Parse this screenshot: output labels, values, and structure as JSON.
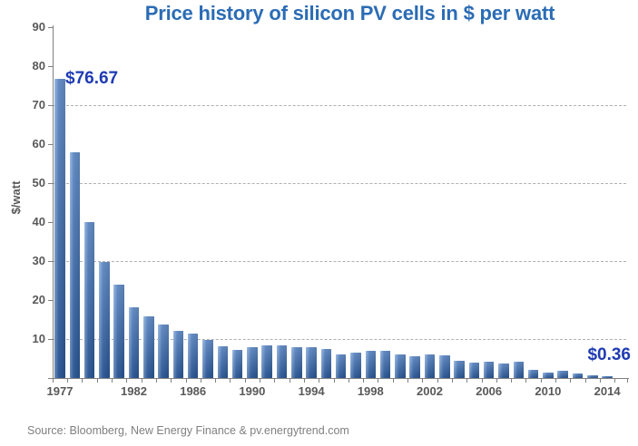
{
  "title": "Price history of silicon PV cells in $ per watt",
  "source_note": "Source: Bloomberg, New Energy Finance & pv.energytrend.com",
  "annotations": {
    "first_price": "$76.67",
    "last_price": "$0.36"
  },
  "y_axis": {
    "title": "$/watt",
    "tick_labels": [
      "90",
      "80",
      "70",
      "60",
      "50",
      "40",
      "30",
      "20",
      "10"
    ],
    "tick_values": [
      90,
      80,
      70,
      60,
      50,
      40,
      30,
      20,
      10
    ],
    "gridlines": [
      70,
      50,
      30,
      10
    ],
    "max": 90
  },
  "x_axis": {
    "labels": [
      "1977",
      "1982",
      "1986",
      "1990",
      "1994",
      "1998",
      "2002",
      "2006",
      "2010",
      "2014"
    ]
  },
  "chart_data": {
    "type": "bar",
    "title": "Price history of silicon PV cells in $ per watt",
    "xlabel": "",
    "ylabel": "$/watt",
    "ylim": [
      0,
      90
    ],
    "grid": "dashed horizontal at 10, 30, 50, 70",
    "legend": "none",
    "categories": [
      "1977",
      "1978",
      "1979",
      "1980",
      "1981",
      "1982",
      "1983",
      "1984",
      "1985",
      "1986",
      "1987",
      "1988",
      "1989",
      "1990",
      "1991",
      "1992",
      "1993",
      "1994",
      "1995",
      "1996",
      "1997",
      "1998",
      "1999",
      "2000",
      "2001",
      "2002",
      "2003",
      "2004",
      "2005",
      "2006",
      "2007",
      "2008",
      "2009",
      "2010",
      "2011",
      "2012",
      "2013",
      "2014"
    ],
    "values": [
      76.67,
      58,
      40,
      29.7,
      24,
      18.2,
      15.8,
      13.8,
      12,
      11.3,
      9.8,
      8.1,
      7.3,
      7.9,
      8.3,
      8.3,
      7.9,
      8,
      7.5,
      6,
      6.6,
      6.9,
      6.9,
      6,
      5.6,
      6,
      5.8,
      4.5,
      3.9,
      4.3,
      3.8,
      4.3,
      2,
      1.5,
      1.9,
      1.2,
      0.65,
      0.36
    ],
    "data_labels": {
      "1977": "$76.67",
      "2014": "$0.36"
    }
  },
  "colors": {
    "title": "#2B6CB5",
    "annotation": "#1F3BB3",
    "axis_label": "#595959",
    "axis_line": "#808080",
    "gridline": "#B0B0B0",
    "source_text": "#808080",
    "bar_light": "#82A8DA",
    "bar_mid": "#3A6CB4",
    "bar_dark": "#2B5A99"
  }
}
